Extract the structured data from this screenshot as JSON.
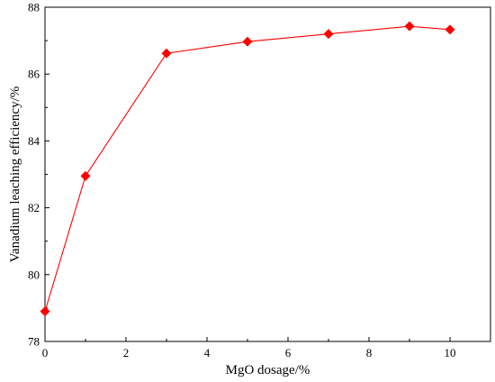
{
  "chart_data": {
    "type": "line",
    "xlabel": "MgO dosage/%",
    "ylabel": "Vanadium leaching efficiency/%",
    "xlim": [
      0,
      11
    ],
    "ylim": [
      78,
      88
    ],
    "xticks": [
      0,
      2,
      4,
      6,
      8,
      10
    ],
    "yticks": [
      78,
      80,
      82,
      84,
      86,
      88
    ],
    "grid": false,
    "series": [
      {
        "x": [
          0,
          1,
          3,
          5,
          7,
          9,
          10
        ],
        "y": [
          78.9,
          82.95,
          86.62,
          86.97,
          87.2,
          87.43,
          87.33
        ],
        "color": "#ff0000",
        "marker": "diamond"
      }
    ]
  }
}
